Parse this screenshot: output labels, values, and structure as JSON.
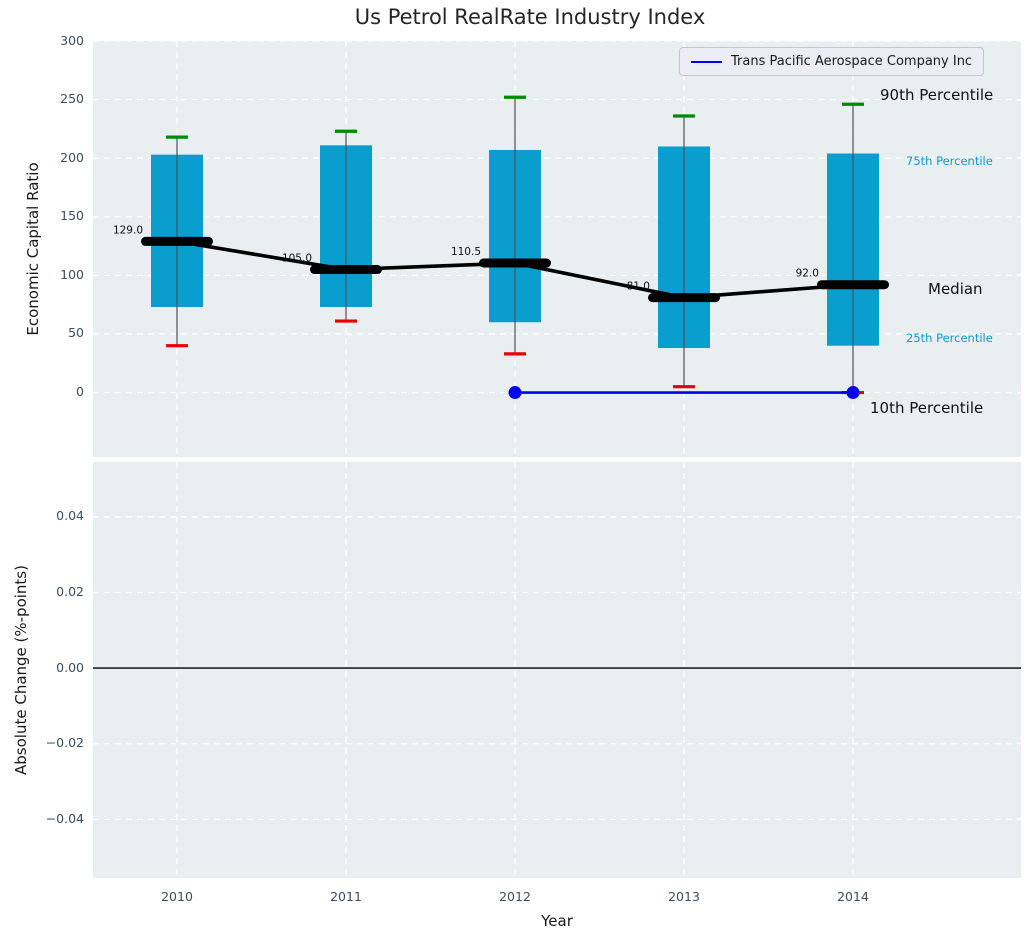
{
  "title": "Us Petrol RealRate Industry Index",
  "legend": {
    "label": "Trans Pacific Aerospace Company Inc"
  },
  "annotations": {
    "p90": "90th Percentile",
    "p75": "75th Percentile",
    "median": "Median",
    "p25": "25th Percentile",
    "p10": "10th Percentile"
  },
  "colors": {
    "box_fill": "#0a9ece",
    "median": "#000000",
    "series": "#0000ee",
    "cap_high": "#008a00",
    "cap_low": "#e80000",
    "whisker": "#4a525c",
    "panel_bg": "#e9eef0",
    "grid": "#ffffff",
    "tick_label": "#3d4e60",
    "cyan_label": "#1199ce",
    "zero_line": "#000000"
  },
  "chart_data": {
    "type": "boxplot",
    "title": "Us Petrol RealRate Industry Index",
    "xlabel": "Year",
    "categories": [
      "2010",
      "2011",
      "2012",
      "2013",
      "2014"
    ],
    "grid": true,
    "legend_position": "upper right",
    "top_panel": {
      "ylabel": "Economic Capital Ratio",
      "ylim": [
        -55,
        300
      ],
      "yticks": [
        0,
        50,
        100,
        150,
        200,
        250,
        300
      ],
      "ytick_labels": [
        "0",
        "50",
        "100",
        "150",
        "200",
        "250",
        "300"
      ]
    },
    "bottom_panel": {
      "ylabel": "Absolute Change (%-points)",
      "ylim": [
        -0.0555,
        0.0545
      ],
      "yticks": [
        -0.04,
        -0.02,
        0,
        0.02,
        0.04
      ],
      "ytick_labels": [
        "−0.04",
        "−0.02",
        "0.00",
        "0.02",
        "0.04"
      ],
      "zero_line": 0
    },
    "boxes": [
      {
        "year": "2010",
        "whisker_low": 40,
        "q1": 73,
        "median": 129.0,
        "q3": 203,
        "whisker_high": 218,
        "median_label": "129.0"
      },
      {
        "year": "2011",
        "whisker_low": 61,
        "q1": 73,
        "median": 105.0,
        "q3": 211,
        "whisker_high": 223,
        "median_label": "105.0"
      },
      {
        "year": "2012",
        "whisker_low": 33,
        "q1": 60,
        "median": 110.5,
        "q3": 207,
        "whisker_high": 252,
        "median_label": "110.5"
      },
      {
        "year": "2013",
        "whisker_low": 5,
        "q1": 38,
        "median": 81.0,
        "q3": 210,
        "whisker_high": 236,
        "median_label": "81.0"
      },
      {
        "year": "2014",
        "whisker_low": 0,
        "q1": 40,
        "median": 92.0,
        "q3": 204,
        "whisker_high": 246,
        "median_label": "92.0"
      }
    ],
    "series": [
      {
        "name": "Trans Pacific Aerospace Company Inc",
        "x": [
          "2012",
          "2014"
        ],
        "values": [
          0,
          0
        ],
        "markers": true
      }
    ]
  }
}
